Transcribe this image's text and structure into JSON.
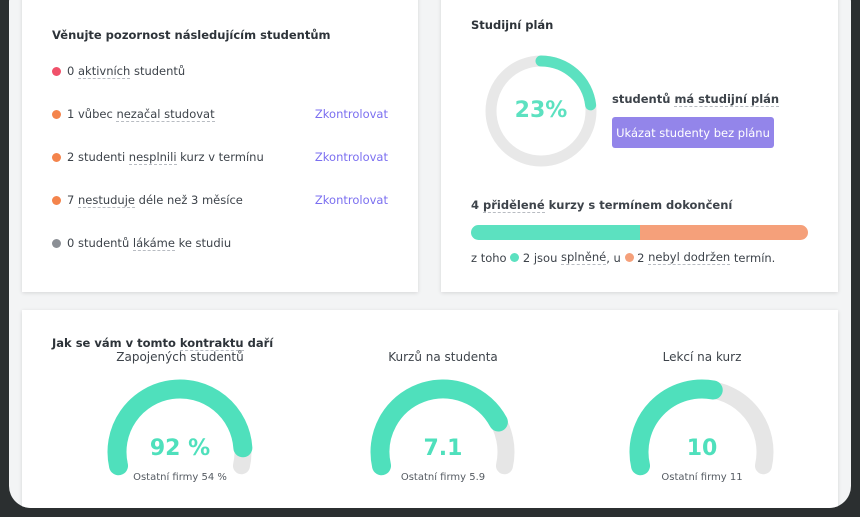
{
  "attention": {
    "title": "Věnujte pozornost následujícím studentům",
    "items": [
      {
        "count": "0",
        "pre": " ",
        "term": "aktivních",
        "post": " studentů",
        "color": "#f0516a",
        "action": ""
      },
      {
        "count": "1",
        "pre": " vůbec ",
        "term": "nezačal studovat",
        "post": "",
        "color": "#f4844c",
        "action": "Zkontrolovat"
      },
      {
        "count": "2",
        "pre": " studenti ",
        "term": "nesplnili",
        "post": " kurz v termínu",
        "color": "#f4844c",
        "action": "Zkontrolovat"
      },
      {
        "count": "7",
        "pre": " ",
        "term": "nestuduje",
        "post": " déle než 3 měsíce",
        "color": "#f4844c",
        "action": "Zkontrolovat"
      },
      {
        "count": "0",
        "pre": " studentů ",
        "term": "lákáme",
        "post": " ke studiu",
        "color": "#8b8f95",
        "action": ""
      }
    ]
  },
  "plan": {
    "title": "Studijní plán",
    "percent_label": "23%",
    "percent": 23,
    "text_pre": "studentů ",
    "text_term": "má studijní plán",
    "button": "Ukázat studenty bez plánu",
    "courses_count": "4",
    "courses_term": "přidělené",
    "courses_post": " kurzy s termínem dokončení",
    "completed": 2,
    "missed": 2,
    "summary_pre": "z toho ",
    "completed_label": " 2 jsou ",
    "completed_term": "splněné",
    "mid": ", u ",
    "missed_label": " 2 ",
    "missed_term": "nebyl dodržen",
    "summary_post": " termín.",
    "colors": {
      "completed": "#5ce1c0",
      "missed": "#f5a07a",
      "track": "#e8e8e8"
    }
  },
  "contract": {
    "title_pre": "Jak se vám v tomto ",
    "title_term": "kontraktu",
    "title_post": " daří",
    "gauges": [
      {
        "title": "Zapojených studentů",
        "value": "92 %",
        "fill": 0.92,
        "compare": "Ostatní firmy 54 %"
      },
      {
        "title": "Kurzů na studenta",
        "value": "7.1",
        "fill": 0.8,
        "compare": "Ostatní firmy 5.9"
      },
      {
        "title": "Lekcí na kurz",
        "value": "10",
        "fill": 0.55,
        "compare": "Ostatní firmy 11"
      }
    ]
  }
}
